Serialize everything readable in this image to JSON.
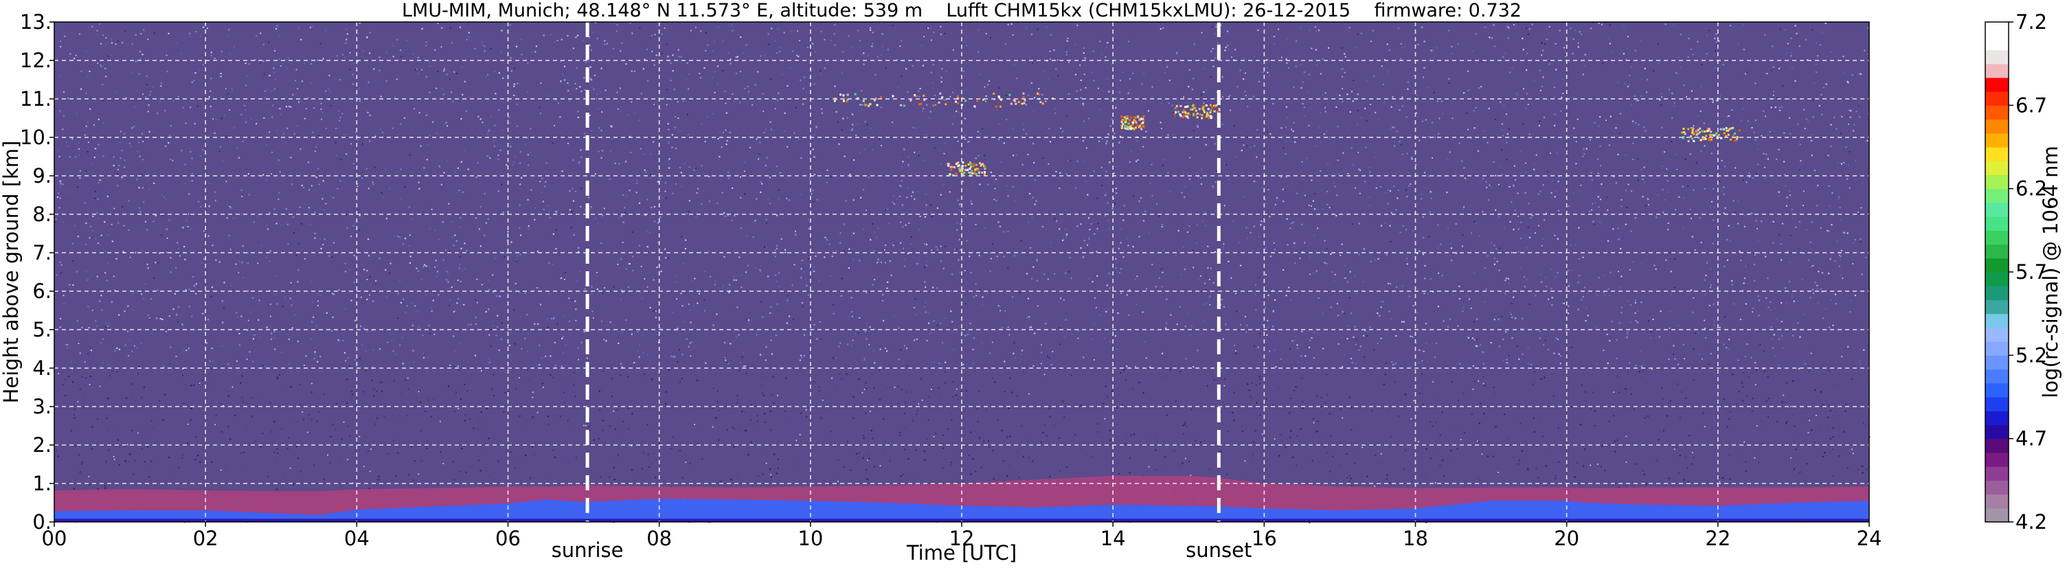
{
  "chart_data": {
    "type": "heatmap",
    "title": "LMU-MIM, Munich; 48.148° N 11.573° E, altitude: 539 m    Lufft CHM15kx (CHM15kxLMU): 26-12-2015    firmware: 0.732",
    "xlabel": "Time [UTC]",
    "ylabel": "Height above ground [km]",
    "xlim": [
      0,
      24
    ],
    "ylim": [
      0,
      13
    ],
    "x_ticks": [
      "00",
      "02",
      "04",
      "06",
      "08",
      "10",
      "12",
      "14",
      "16",
      "18",
      "20",
      "22",
      "24"
    ],
    "x_tick_values": [
      0,
      2,
      4,
      6,
      8,
      10,
      12,
      14,
      16,
      18,
      20,
      22,
      24
    ],
    "y_ticks": [
      "0.",
      "1.",
      "2.",
      "3.",
      "4.",
      "5.",
      "6.",
      "7.",
      "8.",
      "9.",
      "10.",
      "11.",
      "12.",
      "13."
    ],
    "y_tick_values": [
      0,
      1,
      2,
      3,
      4,
      5,
      6,
      7,
      8,
      9,
      10,
      11,
      12,
      13
    ],
    "grid": true,
    "events": [
      {
        "label": "sunrise",
        "time": 7.05
      },
      {
        "label": "sunset",
        "time": 15.4
      }
    ],
    "colorbar": {
      "label": "log(rc-signal) @ 1064 nm",
      "range": [
        4.2,
        7.2
      ],
      "ticks": [
        "4.2",
        "4.7",
        "5.2",
        "5.7",
        "6.2",
        "6.7",
        "7.2"
      ],
      "tick_values": [
        4.2,
        4.7,
        5.2,
        5.7,
        6.2,
        6.7,
        7.2
      ],
      "colors": [
        "#a394a8",
        "#a67fa5",
        "#9c5e9c",
        "#8f3d92",
        "#7a1a82",
        "#5a0a7a",
        "#2a0aa5",
        "#1a1ad0",
        "#1e3ef0",
        "#2e62ff",
        "#4a7cff",
        "#6a94ff",
        "#86a8ff",
        "#9ab8ff",
        "#78c8ea",
        "#3aa8a0",
        "#1a9a78",
        "#0f9c4a",
        "#129a2e",
        "#2ab84a",
        "#3ad060",
        "#46e486",
        "#5ae8a0",
        "#74f07a",
        "#a6f254",
        "#e0f03a",
        "#ffe020",
        "#ffb000",
        "#ff8800",
        "#ff5a00",
        "#ff2e00",
        "#ff0000",
        "#f0b8c0",
        "#ebe6e6",
        "#ffffff",
        "#ffffff"
      ]
    },
    "boundary_layer": {
      "times": [
        0,
        1,
        2,
        3,
        3.5,
        4,
        5,
        6,
        6.5,
        7,
        7.05,
        8,
        9,
        10,
        11,
        12,
        13,
        14,
        15,
        15.4,
        16,
        17,
        18,
        19,
        20,
        20.25,
        21,
        22,
        23,
        24
      ],
      "blue_top": [
        0.28,
        0.3,
        0.3,
        0.22,
        0.18,
        0.32,
        0.4,
        0.48,
        0.58,
        0.52,
        0.52,
        0.6,
        0.58,
        0.55,
        0.5,
        0.42,
        0.38,
        0.45,
        0.42,
        0.4,
        0.35,
        0.3,
        0.35,
        0.55,
        0.55,
        0.5,
        0.45,
        0.42,
        0.5,
        0.55
      ],
      "pink_top": [
        0.82,
        0.85,
        0.82,
        0.8,
        0.8,
        0.85,
        0.88,
        0.92,
        0.92,
        0.95,
        0.95,
        0.92,
        0.9,
        0.92,
        0.95,
        1.0,
        1.1,
        1.2,
        1.2,
        1.15,
        1.0,
        0.92,
        0.88,
        0.9,
        0.9,
        0.88,
        0.9,
        0.9,
        0.9,
        0.92
      ]
    },
    "clouds": [
      {
        "t0": 10.3,
        "t1": 13.2,
        "h": 11.0
      },
      {
        "t0": 11.8,
        "t1": 12.3,
        "h": 9.2
      },
      {
        "t0": 14.1,
        "t1": 14.4,
        "h": 10.4
      },
      {
        "t0": 14.8,
        "t1": 15.4,
        "h": 10.7
      },
      {
        "t0": 21.5,
        "t1": 22.3,
        "h": 10.1
      }
    ]
  }
}
